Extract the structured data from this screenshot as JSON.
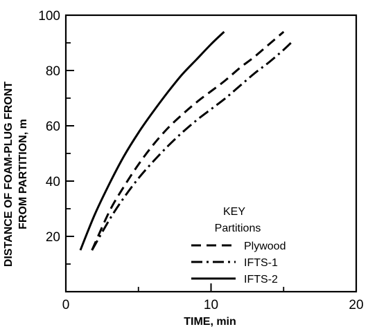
{
  "chart_data": {
    "type": "line",
    "title": "",
    "xlabel": "TIME, min",
    "ylabel_lines": [
      "DISTANCE OF FOAM-PLUG FRONT",
      "FROM PARTITION, m"
    ],
    "xlim": [
      0,
      20
    ],
    "ylim": [
      0,
      100
    ],
    "x_ticks": [
      0,
      10,
      20
    ],
    "x_minor_ticks": [
      5,
      15
    ],
    "y_ticks": [
      20,
      40,
      60,
      80,
      100
    ],
    "y_minor_ticks": [
      10,
      30,
      50,
      70,
      90
    ],
    "grid": false,
    "legend": {
      "title": "KEY",
      "subtitle": "Partitions",
      "placement": "lower-right"
    },
    "series": [
      {
        "name": "Plywood",
        "style": "dashed",
        "x": [
          1.8,
          3,
          4,
          5,
          6,
          7,
          8,
          9,
          10,
          11,
          12,
          13,
          14,
          15
        ],
        "y": [
          15,
          29,
          38,
          46,
          53,
          59,
          64,
          68.5,
          72.5,
          76.5,
          81,
          85,
          89.5,
          94
        ]
      },
      {
        "name": "IFTS-1",
        "style": "dashdot",
        "x": [
          1.8,
          3,
          4,
          5,
          6,
          7,
          8,
          9,
          10,
          11,
          12,
          13,
          14,
          15,
          15.7
        ],
        "y": [
          15,
          26,
          34,
          41,
          47,
          52.5,
          57.5,
          62,
          66,
          70,
          74.5,
          79,
          83,
          87.5,
          91
        ]
      },
      {
        "name": "IFTS-2",
        "style": "solid",
        "x": [
          1,
          2,
          3,
          4,
          5,
          6,
          7,
          8,
          9,
          10,
          10.9
        ],
        "y": [
          15,
          28,
          39,
          49,
          57.5,
          65,
          72,
          78.5,
          84,
          89.5,
          94
        ]
      }
    ]
  }
}
